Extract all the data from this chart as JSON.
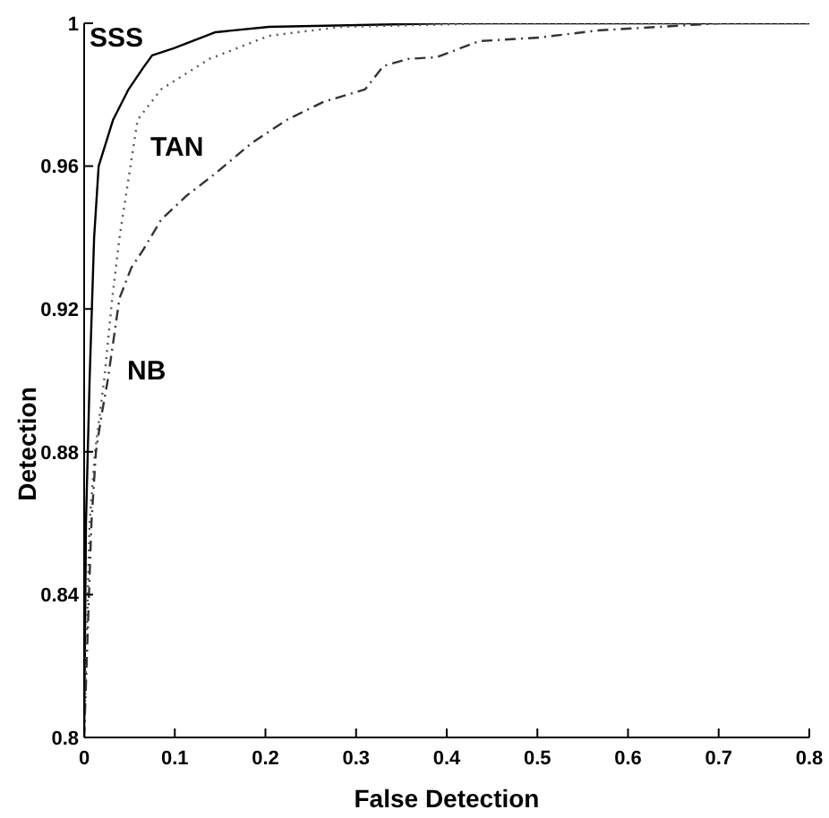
{
  "chart_data": {
    "type": "line",
    "xlabel": "False Detection",
    "ylabel": "Detection",
    "xlim": [
      0,
      0.8
    ],
    "xticks": [
      0,
      0.1,
      0.2,
      0.3,
      0.4,
      0.5,
      0.6,
      0.7,
      0.8
    ],
    "ylim": [
      0.8,
      1
    ],
    "yticks": [
      0.8,
      0.84,
      0.88,
      0.92,
      0.96,
      1
    ],
    "grid": false,
    "legend": false,
    "marker": "none",
    "series": [
      {
        "color": "#000000",
        "line_style": "solid",
        "x": [
          0,
          0.002,
          0.004,
          0.006,
          0.011,
          0.016,
          0.032,
          0.049,
          0.065,
          0.075,
          0.099,
          0.145,
          0.204,
          0.4,
          0.8
        ],
        "values": [
          0.8,
          0.86,
          0.88,
          0.9,
          0.94,
          0.96,
          0.973,
          0.9815,
          0.9875,
          0.991,
          0.993,
          0.9975,
          0.999,
          1,
          1
        ],
        "name": "SSS"
      },
      {
        "color": "#555555",
        "line_style": "dotted",
        "x": [
          0,
          0.003,
          0.006,
          0.012,
          0.022,
          0.031,
          0.039,
          0.049,
          0.059,
          0.085,
          0.138,
          0.204,
          0.284,
          0.45,
          0.8
        ],
        "values": [
          0.8,
          0.83,
          0.86,
          0.88,
          0.9,
          0.923,
          0.94,
          0.9565,
          0.973,
          0.9815,
          0.99,
          0.9965,
          0.999,
          1,
          1
        ],
        "name": "TAN"
      },
      {
        "color": "#333333",
        "line_style": "dashed",
        "x": [
          0,
          0.004,
          0.008,
          0.013,
          0.019,
          0.026,
          0.039,
          0.052,
          0.065,
          0.085,
          0.112,
          0.145,
          0.185,
          0.224,
          0.264,
          0.31,
          0.33,
          0.357,
          0.389,
          0.436,
          0.502,
          0.567,
          0.635,
          0.7
        ],
        "values": [
          0.8,
          0.83,
          0.86,
          0.88,
          0.89,
          0.9,
          0.923,
          0.9315,
          0.9365,
          0.945,
          0.9515,
          0.958,
          0.9665,
          0.973,
          0.978,
          0.9815,
          0.988,
          0.99,
          0.9905,
          0.995,
          0.996,
          0.998,
          0.999,
          1
        ],
        "name": "NB"
      }
    ]
  }
}
